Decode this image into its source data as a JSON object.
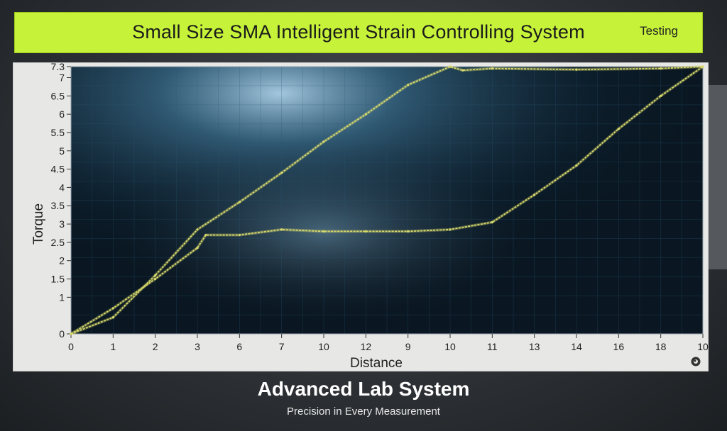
{
  "header": {
    "title": "Small Size SMA Intelligent Strain Controlling System",
    "status": "Testing"
  },
  "footer": {
    "title": "Advanced Lab System",
    "subtitle": "Precision in Every Measurement"
  },
  "colors": {
    "banner": "#c6f23a",
    "plot_bg": "#0b1a26",
    "curve": "#d8d96a",
    "panel": "#e7e7e6"
  },
  "chart_data": {
    "type": "line",
    "title": "",
    "xlabel": "Distance",
    "ylabel": "Torque",
    "x_tick_labels": [
      "0",
      "1",
      "2",
      "3",
      "6",
      "7",
      "10",
      "12",
      "9",
      "10",
      "11",
      "13",
      "14",
      "16",
      "18",
      "10"
    ],
    "ylim": [
      0,
      7.3
    ],
    "y_ticks": [
      0,
      1,
      1.5,
      2,
      2.5,
      3,
      3.5,
      4,
      4.5,
      5,
      5.5,
      6,
      6.5,
      7,
      7.3
    ],
    "y_tick_labels": [
      "0",
      "1",
      "1.5",
      "2",
      "2.5",
      "3",
      "3.5",
      "4",
      "4.5",
      "5",
      "5.5",
      "6",
      "6.5",
      "7",
      "7.3"
    ],
    "grid": true,
    "series": [
      {
        "name": "",
        "points": [
          [
            0,
            0
          ],
          [
            1,
            0.45
          ],
          [
            2,
            1.6
          ],
          [
            3,
            2.85
          ],
          [
            4,
            3.6
          ],
          [
            5,
            4.4
          ],
          [
            6,
            5.25
          ],
          [
            7,
            6.0
          ],
          [
            8,
            6.8
          ],
          [
            9,
            7.3
          ],
          [
            9.3,
            7.2
          ],
          [
            10,
            7.25
          ],
          [
            12,
            7.22
          ],
          [
            14,
            7.25
          ],
          [
            15,
            7.3
          ]
        ]
      },
      {
        "name": "",
        "points": [
          [
            0,
            0
          ],
          [
            1,
            0.7
          ],
          [
            2,
            1.5
          ],
          [
            3,
            2.35
          ],
          [
            3.2,
            2.7
          ],
          [
            4,
            2.7
          ],
          [
            5,
            2.85
          ],
          [
            6,
            2.8
          ],
          [
            7,
            2.8
          ],
          [
            8,
            2.8
          ],
          [
            9,
            2.85
          ],
          [
            10,
            3.05
          ],
          [
            11,
            3.8
          ],
          [
            12,
            4.6
          ],
          [
            13,
            5.6
          ],
          [
            14,
            6.5
          ],
          [
            15,
            7.3
          ]
        ]
      }
    ]
  }
}
